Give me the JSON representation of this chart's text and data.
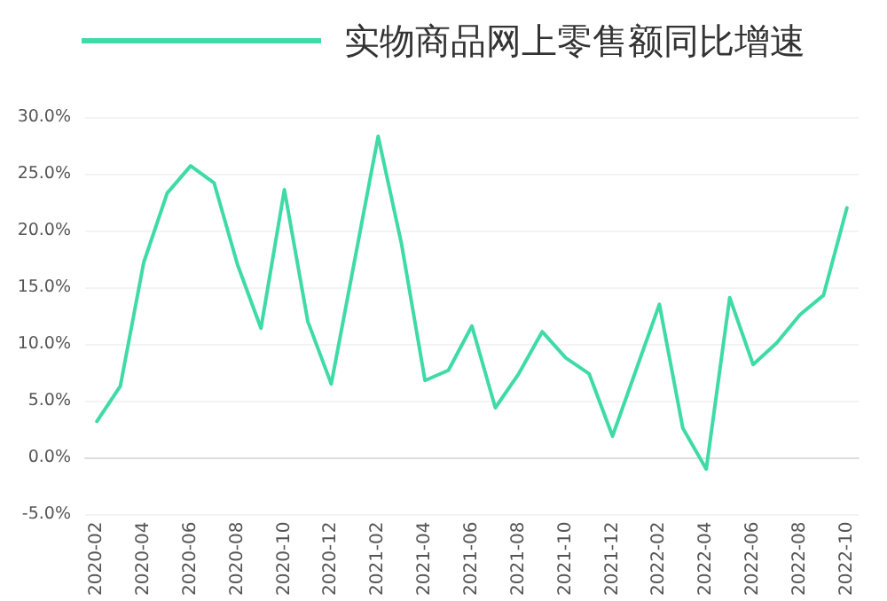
{
  "chart_data": {
    "type": "line",
    "categories": [
      "2020-02",
      null,
      "2020-04",
      null,
      "2020-06",
      null,
      "2020-08",
      null,
      "2020-10",
      null,
      "2020-12",
      null,
      "2021-02",
      null,
      "2021-04",
      null,
      "2021-06",
      null,
      "2021-08",
      null,
      "2021-10",
      null,
      "2021-12",
      null,
      "2022-02",
      null,
      "2022-04",
      null,
      "2022-06",
      null,
      "2022-08",
      null,
      "2022-10"
    ],
    "series": [
      {
        "name": "实物商品网上零售额同比增速",
        "color": "#3fdba6",
        "values": [
          3.2,
          6.3,
          17.2,
          23.3,
          25.7,
          24.2,
          17.0,
          11.4,
          23.6,
          12.0,
          6.5,
          null,
          28.3,
          18.8,
          6.8,
          7.7,
          11.6,
          4.4,
          7.4,
          11.1,
          8.8,
          7.4,
          1.9,
          null,
          13.5,
          2.6,
          -1.0,
          14.1,
          8.2,
          10.1,
          12.6,
          14.3,
          22.0
        ]
      }
    ],
    "ylim": [
      -5,
      30
    ],
    "yticks": [
      {
        "value": -5,
        "label": "-5.0%"
      },
      {
        "value": 0,
        "label": "0.0%"
      },
      {
        "value": 5,
        "label": "5.0%"
      },
      {
        "value": 10,
        "label": "10.0%"
      },
      {
        "value": 15,
        "label": "15.0%"
      },
      {
        "value": 20,
        "label": "20.0%"
      },
      {
        "value": 25,
        "label": "25.0%"
      },
      {
        "value": 30,
        "label": "30.0%"
      }
    ],
    "legend": "top",
    "grid": "y",
    "marker": "none",
    "line_style": "solid"
  }
}
